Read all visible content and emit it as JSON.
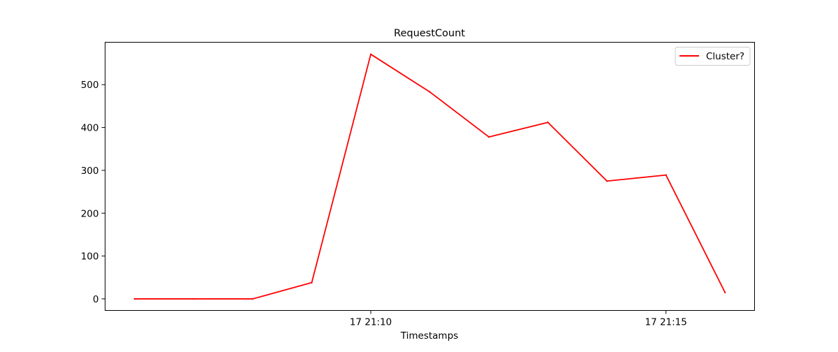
{
  "chart_data": {
    "type": "line",
    "title": "RequestCount",
    "xlabel": "Timestamps",
    "ylabel": "",
    "x": [
      "21:06",
      "21:07",
      "21:08",
      "21:09",
      "21:10",
      "21:11",
      "21:12",
      "21:13",
      "21:14",
      "21:15",
      "21:16"
    ],
    "xlim": [
      "21:05:30",
      "21:16:30"
    ],
    "x_ticks": [
      {
        "value": "21:10",
        "label": "17 21:10"
      },
      {
        "value": "21:15",
        "label": "17 21:15"
      }
    ],
    "series": [
      {
        "name": "Cluster?",
        "color": "#ff0000",
        "values": [
          0,
          0,
          0,
          38,
          571,
          483,
          378,
          412,
          275,
          289,
          15
        ]
      }
    ],
    "ylim": [
      -27,
      599
    ],
    "y_ticks": [
      0,
      100,
      200,
      300,
      400,
      500
    ],
    "grid": false,
    "legend_position": "top-right"
  }
}
